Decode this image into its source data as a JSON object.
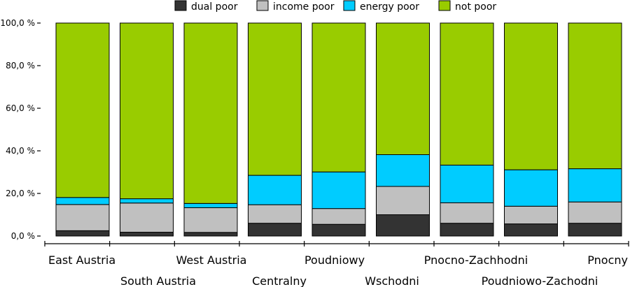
{
  "chart_data": {
    "type": "bar",
    "stacked": true,
    "categories": [
      "East Austria",
      "South Austria",
      "West Austria",
      "Centralny",
      "Poudniowy",
      "Wschodni",
      "Pnocno-Zachhodni",
      "Poudniowo-Zachodni",
      "Pnocny"
    ],
    "series": [
      {
        "name": "dual poor",
        "color": "#333333",
        "values": [
          2.5,
          1.8,
          1.7,
          6.0,
          5.5,
          10.0,
          6.0,
          5.7,
          6.0
        ]
      },
      {
        "name": "income poor",
        "color": "#c0c0c0",
        "values": [
          12.3,
          13.7,
          11.6,
          8.7,
          7.4,
          13.3,
          9.6,
          8.3,
          10.0
        ]
      },
      {
        "name": "energy poor",
        "color": "#00ccff",
        "values": [
          3.3,
          2.0,
          2.0,
          13.8,
          17.2,
          14.9,
          17.7,
          17.1,
          15.6
        ]
      },
      {
        "name": "not poor",
        "color": "#99cc00",
        "values": [
          81.9,
          82.5,
          84.7,
          71.5,
          69.9,
          61.8,
          66.7,
          68.9,
          68.4
        ]
      }
    ],
    "yticks": [
      "0,0 %",
      "20,0 %",
      "40,0 %",
      "60,0 %",
      "80,0 %",
      "100,0 %"
    ],
    "ylim": [
      0,
      100
    ],
    "xlabel": "",
    "ylabel": "",
    "title": "",
    "legend_position": "top",
    "grid": false
  }
}
